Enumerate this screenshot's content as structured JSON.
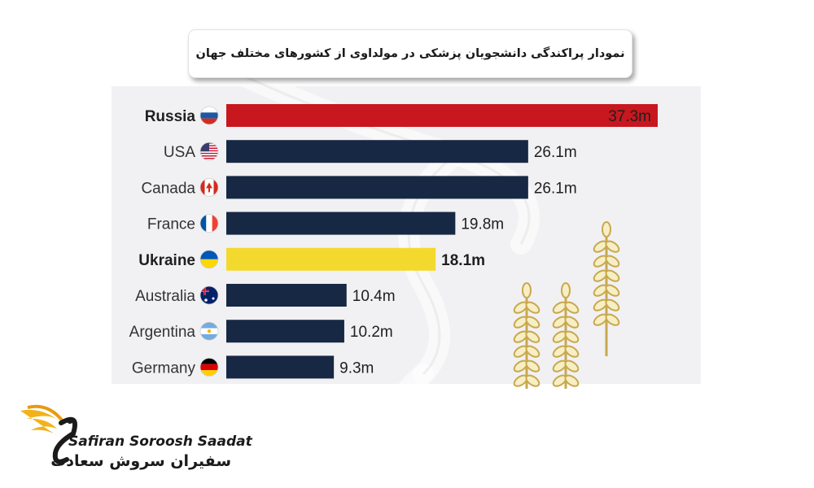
{
  "title": "نمودار پراکندگی دانشجویان پزشکی در مولداوی از کشورهای مختلف جهان",
  "chart_data": {
    "type": "bar",
    "orientation": "horizontal",
    "categories": [
      "Russia",
      "USA",
      "Canada",
      "France",
      "Ukraine",
      "Australia",
      "Argentina",
      "Germany"
    ],
    "values": [
      37.3,
      26.1,
      26.1,
      19.8,
      18.1,
      10.4,
      10.2,
      9.3
    ],
    "value_labels": [
      "37.3m",
      "26.1m",
      "26.1m",
      "19.8m",
      "18.1m",
      "10.4m",
      "10.2m",
      "9.3m"
    ],
    "highlighted": [
      "Russia",
      "Ukraine"
    ],
    "bar_colors": [
      "#c8171e",
      "#172844",
      "#172844",
      "#172844",
      "#f3d92e",
      "#172844",
      "#172844",
      "#172844"
    ],
    "flag_icons": [
      "russia-flag-icon",
      "usa-flag-icon",
      "canada-flag-icon",
      "france-flag-icon",
      "ukraine-flag-icon",
      "australia-flag-icon",
      "argentina-flag-icon",
      "germany-flag-icon"
    ],
    "xlim": [
      0,
      37.3
    ],
    "grid": false,
    "legend": "none"
  },
  "decoration": {
    "icon": "wheat-icon"
  },
  "logo": {
    "name_en": "Safiran Soroosh Saadat",
    "name_fa": "سفیران سروش سعادت",
    "icon": "wing-s-logo-icon"
  }
}
